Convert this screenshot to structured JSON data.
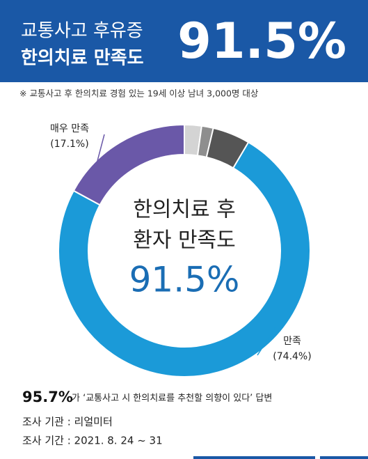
{
  "header": {
    "line1": "교통사고 후유증",
    "line2": "한의치료 만족도",
    "figure": "91.5%"
  },
  "note": "※ 교통사고 후 한의치료 경험 있는 19세 이상 남녀 3,000명 대상",
  "chart_data": {
    "type": "donut",
    "categories": [
      null,
      null,
      null,
      "만족",
      "매우 만족"
    ],
    "values": [
      2.2,
      1.5,
      4.8,
      74.4,
      17.1
    ],
    "value_labels": [
      null,
      null,
      null,
      "(74.4%)",
      "(17.1%)"
    ],
    "colors": [
      "#d4d4d4",
      "#8e8e8e",
      "#555555",
      "#1b9ad8",
      "#6a58a8"
    ],
    "center_text": [
      "한의치료 후",
      "환자 만족도",
      "91.5%"
    ]
  },
  "footer": {
    "figure": "95.7%",
    "text": "가 ‘교통사고 시 한의치료를 추천할 의향이 있다’ 답변",
    "agency": "조사 기관 : 리얼미터",
    "period": "조사 기간 : 2021. 8. 24 ~ 31"
  }
}
